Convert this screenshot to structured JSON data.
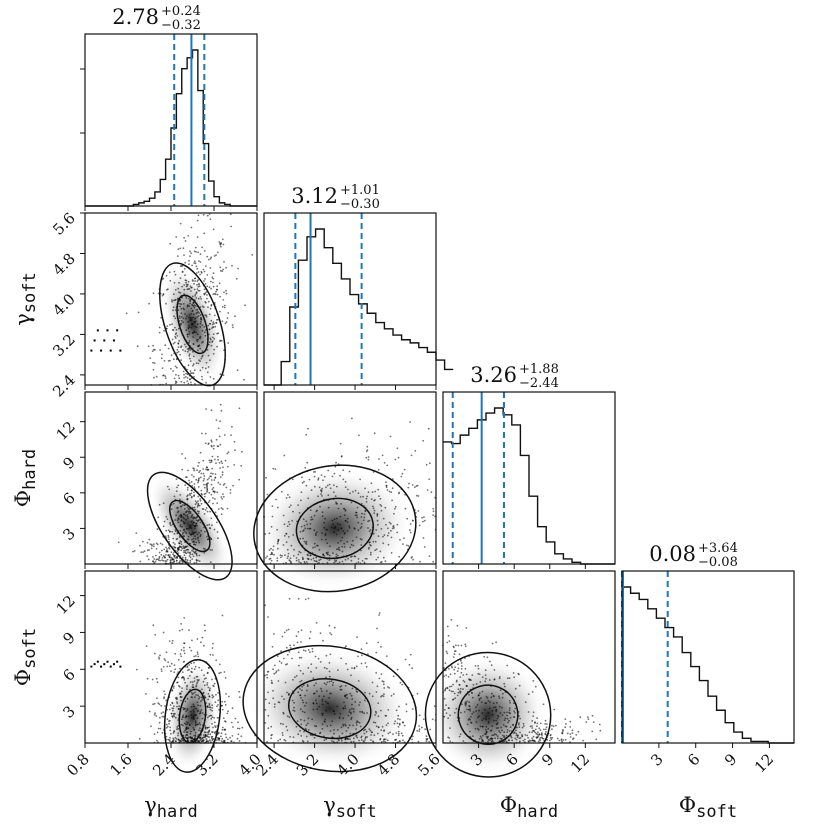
{
  "chart_data": {
    "type": "corner",
    "parameters": [
      {
        "name": "gamma_hard",
        "symbol": "γ",
        "subscript": "hard",
        "axis_label": "γhard",
        "range": [
          0.8,
          4.0
        ],
        "ticks": [
          "0.8",
          "1.6",
          "2.4",
          "3.2",
          "4.0"
        ]
      },
      {
        "name": "gamma_soft",
        "symbol": "γ",
        "subscript": "soft",
        "axis_label": "γsoft",
        "range": [
          2.2,
          5.6
        ],
        "ticks": [
          "2.4",
          "3.2",
          "4.0",
          "4.8",
          "5.6"
        ]
      },
      {
        "name": "phi_hard",
        "symbol": "Φ",
        "subscript": "hard",
        "axis_label": "Φhard",
        "range": [
          0,
          14.5
        ],
        "ticks": [
          "3",
          "6",
          "9",
          "12"
        ]
      },
      {
        "name": "phi_soft",
        "symbol": "Φ",
        "subscript": "soft",
        "axis_label": "Φsoft",
        "range": [
          0,
          14
        ],
        "ticks": [
          "3",
          "6",
          "9",
          "12"
        ]
      }
    ],
    "titles": [
      {
        "median": "2.78",
        "plus": "+0.24",
        "minus": "−0.32",
        "median_value": 2.78,
        "lo_value": 2.46,
        "hi_value": 3.02
      },
      {
        "median": "3.12",
        "plus": "+1.01",
        "minus": "−0.30",
        "median_value": 3.12,
        "lo_value": 2.82,
        "hi_value": 4.13
      },
      {
        "median": "3.26",
        "plus": "+1.88",
        "minus": "−2.44",
        "median_value": 3.26,
        "lo_value": 0.82,
        "hi_value": 5.14
      },
      {
        "median": "0.08",
        "plus": "+3.64",
        "minus": "−0.08",
        "median_value": 0.08,
        "lo_value": 0.0,
        "hi_value": 3.72
      }
    ],
    "histograms": [
      {
        "bin_edges_start": 0.8,
        "bin_width": 0.1,
        "counts": [
          0,
          0,
          0,
          0,
          0,
          0,
          0,
          0,
          0,
          1,
          2,
          3,
          5,
          9,
          17,
          30,
          50,
          72,
          88,
          95,
          100,
          74,
          40,
          16,
          6,
          2,
          1,
          0,
          0,
          0,
          0,
          0
        ]
      },
      {
        "bin_edges_start": 2.2,
        "bin_width": 0.17,
        "counts": [
          0,
          0,
          15,
          50,
          80,
          95,
          100,
          88,
          78,
          68,
          58,
          52,
          46,
          40,
          36,
          32,
          29,
          27,
          24,
          21,
          16,
          10
        ]
      },
      {
        "bin_edges_start": 0,
        "bin_width": 0.725,
        "counts": [
          72,
          71,
          76,
          80,
          85,
          89,
          92,
          88,
          82,
          64,
          40,
          22,
          13,
          6,
          3,
          1,
          0,
          0,
          0,
          0
        ]
      },
      {
        "bin_edges_start": 0,
        "bin_width": 0.7,
        "counts": [
          100,
          96,
          92,
          86,
          80,
          74,
          68,
          58,
          49,
          40,
          30,
          21,
          13,
          7,
          3,
          1,
          1,
          0,
          0,
          0
        ]
      }
    ],
    "contour_color": "#111111",
    "quantile_color": "#1f77b4"
  }
}
